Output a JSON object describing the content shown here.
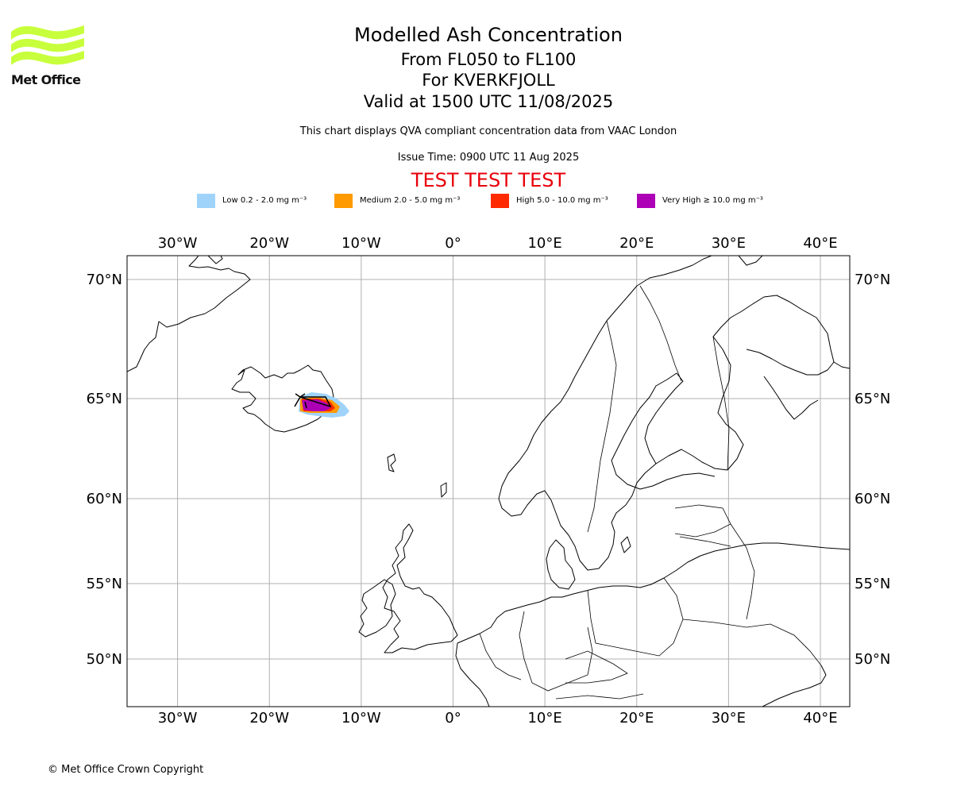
{
  "logo": {
    "text": "Met Office",
    "color": "#c8ff3c"
  },
  "header": {
    "title": "Modelled Ash Concentration",
    "subtitle_levels": "From FL050 to FL100",
    "subtitle_volcano": "For KVERKFJOLL",
    "subtitle_valid": "Valid at 1500 UTC 11/08/2025",
    "note": "This chart displays QVA compliant concentration data from VAAC London",
    "issue_time": "Issue Time: 0900 UTC 11 Aug 2025",
    "test_banner": "TEST TEST TEST"
  },
  "legend": [
    {
      "label": "Low 0.2 - 2.0 mg m⁻³",
      "color": "#9fd3fa"
    },
    {
      "label": "Medium 2.0 - 5.0 mg m⁻³",
      "color": "#ff9a00"
    },
    {
      "label": "High 5.0 - 10.0 mg m⁻³",
      "color": "#ff2a00"
    },
    {
      "label": "Very High  ≥  10.0 mg m⁻³",
      "color": "#ad00b6"
    }
  ],
  "map": {
    "lon_range": [
      -35.5,
      43.2
    ],
    "lat_ticks": [
      {
        "lat": 70,
        "label": "70°N"
      },
      {
        "lat": 65,
        "label": "65°N"
      },
      {
        "lat": 60,
        "label": "60°N"
      },
      {
        "lat": 55,
        "label": "55°N"
      },
      {
        "lat": 50,
        "label": "50°N"
      }
    ],
    "lon_ticks": [
      {
        "lon": -30,
        "label": "30°W"
      },
      {
        "lon": -20,
        "label": "20°W"
      },
      {
        "lon": -10,
        "label": "10°W"
      },
      {
        "lon": 0,
        "label": "0°"
      },
      {
        "lon": 10,
        "label": "10°E"
      },
      {
        "lon": 20,
        "label": "20°E"
      },
      {
        "lon": 30,
        "label": "30°E"
      },
      {
        "lon": 40,
        "label": "40°E"
      }
    ],
    "grid": true
  },
  "footer": {
    "copyright": "© Met Office Crown Copyright"
  }
}
